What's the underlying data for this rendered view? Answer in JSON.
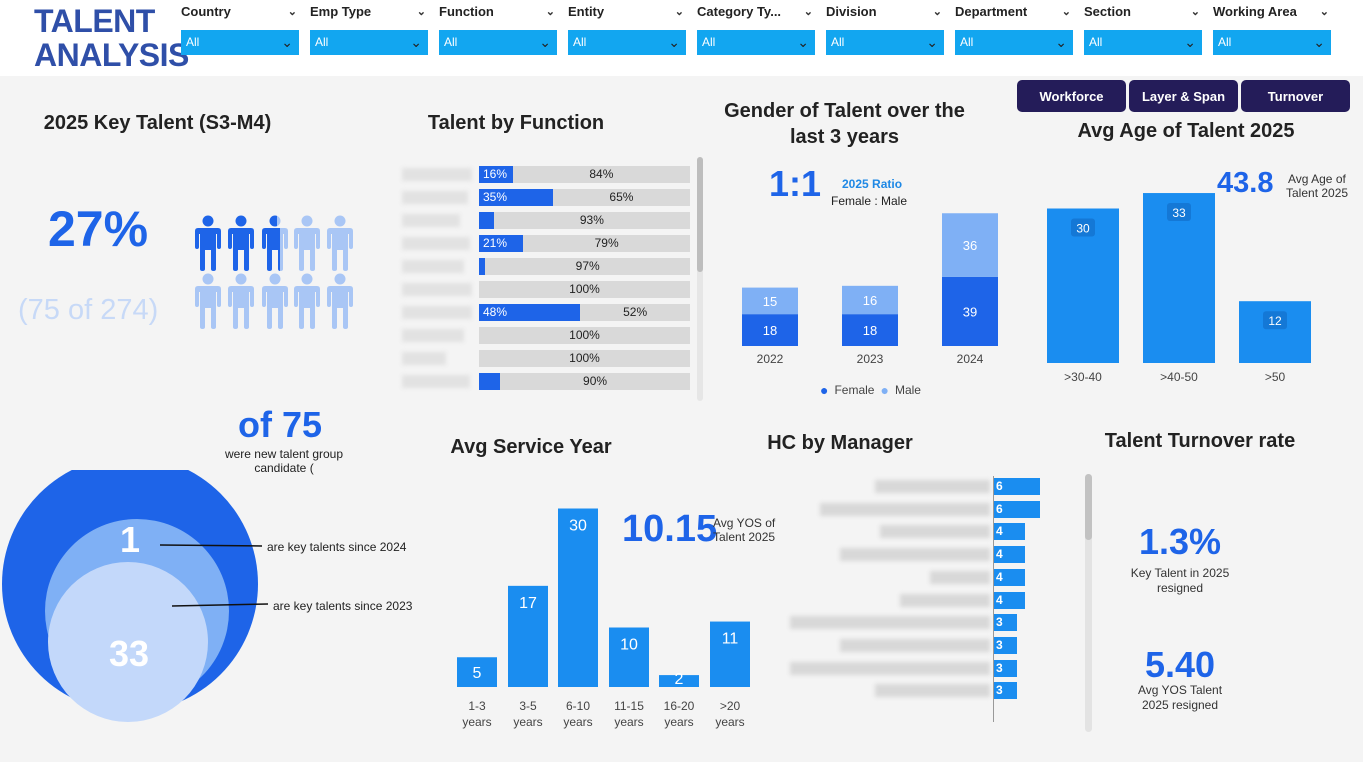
{
  "header": {
    "logo_line1": "TALENT",
    "logo_line2": "ANALYSIS",
    "slicers": [
      {
        "label": "Country",
        "value": "All"
      },
      {
        "label": "Emp Type",
        "value": "All"
      },
      {
        "label": "Function",
        "value": "All"
      },
      {
        "label": "Entity",
        "value": "All"
      },
      {
        "label": "Category Ty...",
        "value": "All"
      },
      {
        "label": "Division",
        "value": "All"
      },
      {
        "label": "Department",
        "value": "All"
      },
      {
        "label": "Section",
        "value": "All"
      },
      {
        "label": "Working Area",
        "value": "All"
      }
    ]
  },
  "nav": {
    "workforce": "Workforce",
    "layer_span": "Layer & Span",
    "turnover": "Turnover"
  },
  "key_talent": {
    "title": "2025 Key Talent (S3-M4)",
    "percent": "27%",
    "count": "(75 of 274)",
    "filled_fraction": 0.27,
    "of_total": "of 75",
    "new_candidate_text": "were new talent group candidate (",
    "since_2024_value": "1",
    "since_2024_text": "are key talents since 2024",
    "since_2023_value": "33",
    "since_2023_text": "are key talents since 2023",
    "colors": {
      "primary": "#1e64e8",
      "light": "#a9c6f5"
    }
  },
  "function": {
    "title": "Talent by Function",
    "rows": [
      {
        "blue": 16,
        "blue_label": "16%",
        "grey_label": "84%"
      },
      {
        "blue": 35,
        "blue_label": "35%",
        "grey_label": "65%"
      },
      {
        "blue": 7,
        "blue_label": "",
        "grey_label": "93%"
      },
      {
        "blue": 21,
        "blue_label": "21%",
        "grey_label": "79%"
      },
      {
        "blue": 3,
        "blue_label": "",
        "grey_label": "97%"
      },
      {
        "blue": 0,
        "blue_label": "",
        "grey_label": "100%"
      },
      {
        "blue": 48,
        "blue_label": "48%",
        "grey_label": "52%"
      },
      {
        "blue": 0,
        "blue_label": "",
        "grey_label": "100%"
      },
      {
        "blue": 0,
        "blue_label": "",
        "grey_label": "100%"
      },
      {
        "blue": 10,
        "blue_label": "",
        "grey_label": "90%"
      }
    ]
  },
  "gender": {
    "title_line1": "Gender of Talent over the",
    "title_line2": "last 3 years",
    "ratio": "1:1",
    "ratio_label": "2025 Ratio",
    "ratio_sub": "Female : Male",
    "legend_female": "Female",
    "legend_male": "Male",
    "colors": {
      "female": "#1e64e8",
      "male": "#7fb0f5"
    }
  },
  "age": {
    "title": "Avg Age of Talent 2025",
    "value": "43.8",
    "label_line1": "Avg Age of",
    "label_line2": "Talent 2025"
  },
  "service": {
    "title": "Avg Service Year",
    "value": "10.15",
    "label_line1": "Avg YOS of",
    "label_line2": "Talent 2025"
  },
  "manager": {
    "title": "HC by Manager",
    "values": [
      "6",
      "6",
      "4",
      "4",
      "4",
      "4",
      "3",
      "3",
      "3",
      "3"
    ]
  },
  "turnover": {
    "title": "Talent Turnover rate",
    "rate": "1.3%",
    "rate_line1": "Key Talent in 2025",
    "rate_line2": "resigned",
    "yos": "5.40",
    "yos_line1": "Avg YOS Talent",
    "yos_line2": "2025 resigned"
  },
  "chart_data": [
    {
      "type": "bar",
      "title": "Gender of Talent over the last 3 years",
      "categories": [
        "2022",
        "2023",
        "2024"
      ],
      "series": [
        {
          "name": "Female",
          "values": [
            18,
            18,
            39
          ]
        },
        {
          "name": "Male",
          "values": [
            15,
            16,
            36
          ]
        }
      ],
      "stacked": true
    },
    {
      "type": "bar",
      "title": "Avg Age of Talent 2025",
      "categories": [
        ">30-40",
        ">40-50",
        ">50"
      ],
      "values": [
        30,
        33,
        12
      ]
    },
    {
      "type": "bar",
      "title": "Avg Service Year",
      "categories": [
        "1-3 years",
        "3-5 years",
        "6-10 years",
        "11-15 years",
        "16-20 years",
        ">20 years"
      ],
      "category_lines": [
        [
          "1-3",
          "years"
        ],
        [
          "3-5",
          "years"
        ],
        [
          "6-10",
          "years"
        ],
        [
          "11-15",
          "years"
        ],
        [
          "16-20",
          "years"
        ],
        [
          ">20",
          "years"
        ]
      ],
      "values": [
        5,
        17,
        30,
        10,
        2,
        11
      ]
    },
    {
      "type": "bar",
      "title": "HC by Manager",
      "orientation": "horizontal",
      "values": [
        6,
        6,
        4,
        4,
        4,
        4,
        3,
        3,
        3,
        3
      ]
    }
  ]
}
